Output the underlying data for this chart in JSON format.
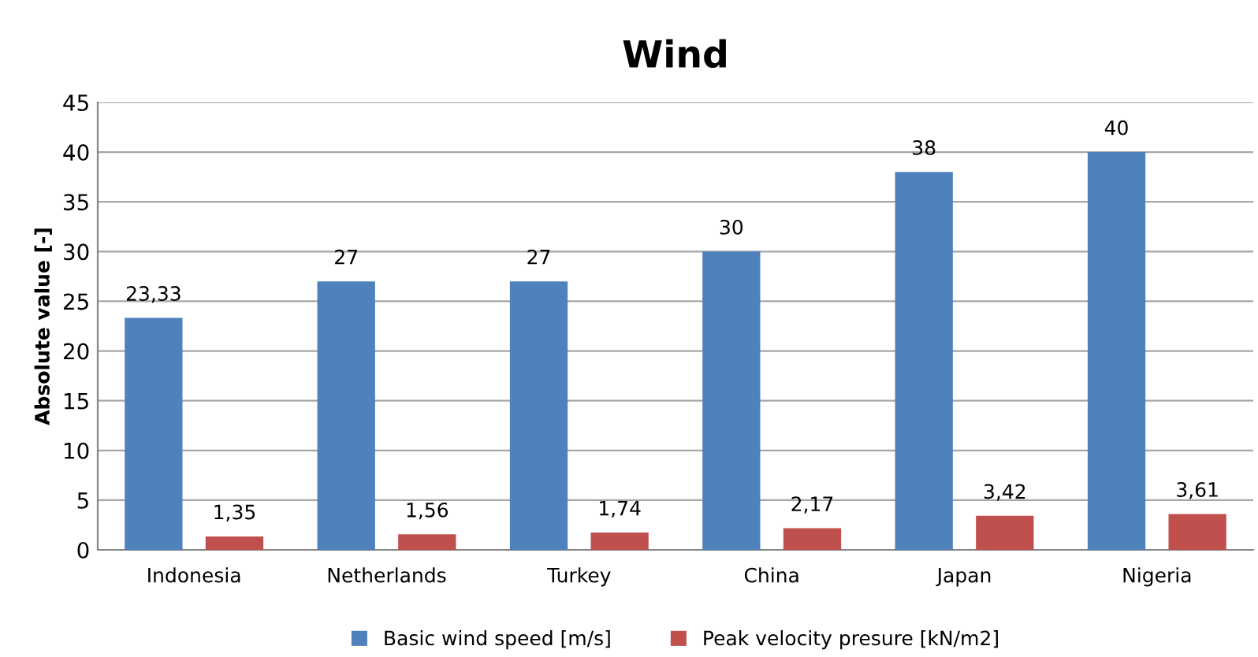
{
  "chart_data": {
    "type": "bar",
    "title": "Wind",
    "ylabel": "Absolute value [-]",
    "categories": [
      "Indonesia",
      "Netherlands",
      "Turkey",
      "China",
      "Japan",
      "Nigeria"
    ],
    "series": [
      {
        "name": "Basic wind speed [m/s]",
        "color": "#4f81bd",
        "values": [
          23.33,
          27,
          27,
          30,
          38,
          40
        ],
        "value_labels": [
          "23,33",
          "27",
          "27",
          "30",
          "38",
          "40"
        ]
      },
      {
        "name": "Peak velocity presure [kN/m2]",
        "color": "#c0504d",
        "values": [
          1.35,
          1.56,
          1.74,
          2.17,
          3.42,
          3.61
        ],
        "value_labels": [
          "1,35",
          "1,56",
          "1,74",
          "2,17",
          "3,42",
          "3,61"
        ]
      }
    ],
    "ylim": [
      0,
      45
    ],
    "yticks": [
      0,
      5,
      10,
      15,
      20,
      25,
      30,
      35,
      40,
      45
    ],
    "grid": "y",
    "legend": "bottom"
  }
}
